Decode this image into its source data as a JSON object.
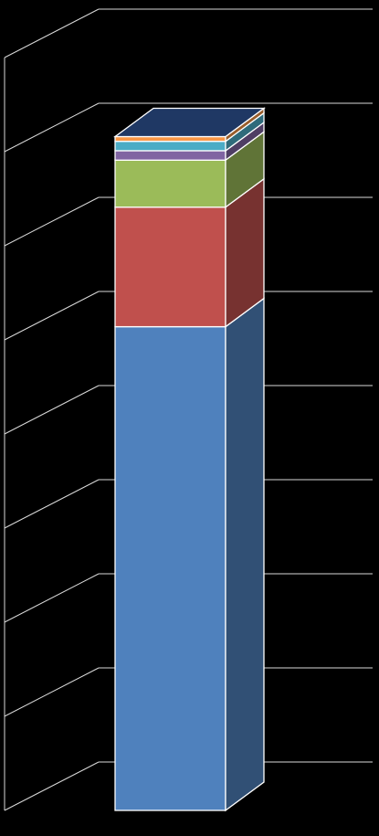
{
  "chart_data": {
    "type": "bar",
    "stacked": true,
    "three_d": true,
    "title": "",
    "xlabel": "",
    "ylabel": "",
    "ylim": [
      0,
      8
    ],
    "grid": true,
    "categories": [
      ""
    ],
    "series": [
      {
        "values": [
          5.14
        ],
        "color": "#4F81BD"
      },
      {
        "values": [
          1.27
        ],
        "color": "#C0504D"
      },
      {
        "values": [
          0.5
        ],
        "color": "#9BBB59"
      },
      {
        "values": [
          0.1
        ],
        "color": "#8064A2"
      },
      {
        "values": [
          0.1
        ],
        "color": "#4BACC6"
      },
      {
        "values": [
          0.05
        ],
        "color": "#F79646"
      }
    ]
  }
}
